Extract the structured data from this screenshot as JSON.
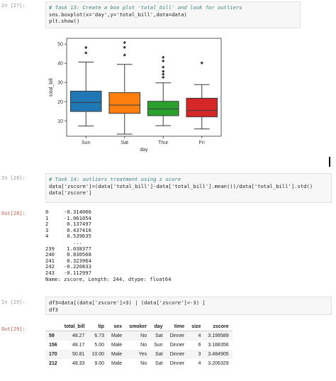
{
  "cells": {
    "c27": {
      "prompt": "In [27]:",
      "comment": "# Task 13: Create a box plot 'total_bill' and look for outliers",
      "code": [
        "sns.boxplot(x='day',y='total_bill',data=data)",
        "plt.show()"
      ]
    },
    "c28": {
      "prompt": "In [28]:",
      "comment": "# Task 14: outliers treatment using z score",
      "code": [
        "data['zscore']=(data['total_bill']-data['total_bill'].mean())/data['total_bill'].std()",
        "data['zscore']"
      ],
      "out_prompt": "Out[28]:",
      "output": [
        "0     -0.314066",
        "1     -1.061054",
        "2      0.137497",
        "3      0.437416",
        "4      0.539635",
        "         ...",
        "239    1.038377",
        "240    0.830568",
        "241    0.323964",
        "242   -0.220833",
        "243   -0.112997",
        "Name: zscore, Length: 244, dtype: float64"
      ]
    },
    "c29": {
      "prompt": "In [29]:",
      "code": [
        "df3=data[(data['zscore']>3) | (data['zscore']<-3) ]",
        "df3"
      ],
      "out_prompt": "Out[29]:",
      "columns": [
        "",
        "total_bill",
        "tip",
        "sex",
        "smoker",
        "day",
        "time",
        "size",
        "zscore"
      ],
      "rows": [
        [
          "59",
          "48.27",
          "6.73",
          "Male",
          "No",
          "Sat",
          "Dinner",
          "4",
          "3.199589"
        ],
        [
          "156",
          "48.17",
          "5.00",
          "Male",
          "No",
          "Sun",
          "Dinner",
          "6",
          "3.188356"
        ],
        [
          "170",
          "50.81",
          "10.00",
          "Male",
          "Yes",
          "Sat",
          "Dinner",
          "3",
          "3.484905"
        ],
        [
          "212",
          "48.33",
          "9.00",
          "Male",
          "No",
          "Sat",
          "Dinner",
          "4",
          "3.206329"
        ]
      ]
    }
  },
  "chart_data": {
    "type": "box",
    "xlabel": "day",
    "ylabel": "total_bill",
    "ylim": [
      2,
      53
    ],
    "yticks": [
      10,
      20,
      30,
      40,
      50
    ],
    "categories": [
      "Sun",
      "Sat",
      "Thur",
      "Fri"
    ],
    "colors": [
      "#1f77b4",
      "#ff7f0e",
      "#2ca02c",
      "#d62728"
    ],
    "boxes": [
      {
        "min": 7.3,
        "q1": 14.9,
        "median": 19.6,
        "q3": 25.5,
        "max": 40.6,
        "outliers": [
          45.4,
          48.2
        ]
      },
      {
        "min": 3.1,
        "q1": 13.9,
        "median": 18.2,
        "q3": 24.7,
        "max": 39.4,
        "outliers": [
          44.3,
          48.3,
          50.8
        ]
      },
      {
        "min": 7.5,
        "q1": 12.7,
        "median": 16.2,
        "q3": 20.2,
        "max": 29.8,
        "outliers": [
          32.7,
          34.3,
          35.8,
          38.0,
          41.2,
          43.1
        ]
      },
      {
        "min": 5.8,
        "q1": 12.1,
        "median": 15.4,
        "q3": 21.8,
        "max": 28.9,
        "outliers": [
          40.2
        ]
      }
    ]
  }
}
